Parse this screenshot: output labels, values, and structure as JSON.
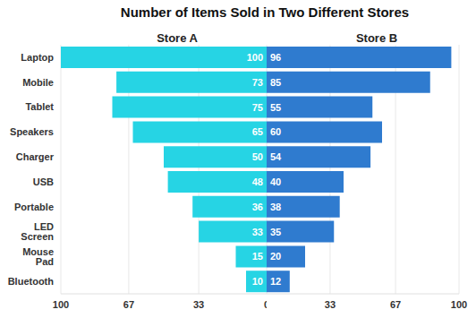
{
  "chart_data": {
    "type": "bar",
    "title": "Number of Items Sold in Two Different Stores",
    "orientation": "horizontal",
    "categories": [
      "Laptop",
      "Mobile",
      "Tablet",
      "Speakers",
      "Charger",
      "USB",
      "Portable",
      "LED Screen",
      "Mouse Pad",
      "Bluetooth"
    ],
    "series": [
      {
        "name": "Store A",
        "color": "#26d4e4",
        "values": [
          100,
          73,
          75,
          65,
          50,
          48,
          36,
          33,
          15,
          10
        ]
      },
      {
        "name": "Store B",
        "color": "#2f7bcf",
        "values": [
          96,
          85,
          55,
          60,
          54,
          40,
          38,
          35,
          20,
          12
        ]
      }
    ],
    "xlim": [
      0,
      100
    ],
    "xticks": [
      0,
      33,
      67,
      100
    ],
    "grid": true,
    "data_labels": true
  }
}
